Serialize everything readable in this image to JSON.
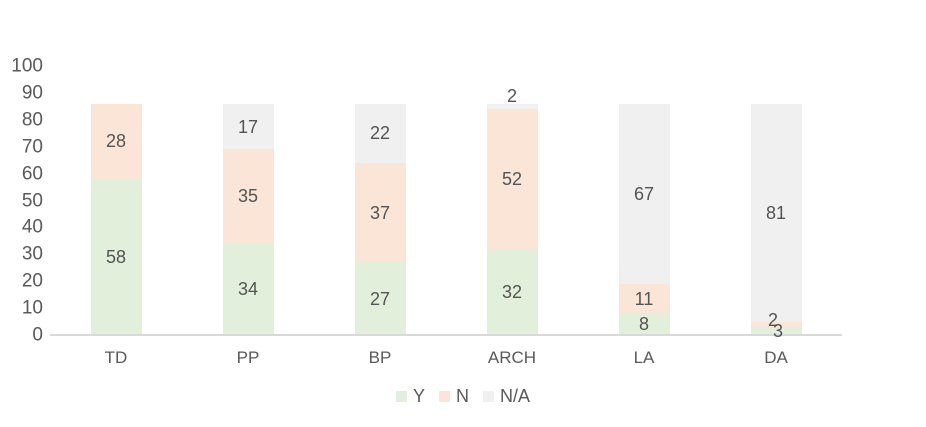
{
  "chart_data": {
    "type": "bar",
    "stacked": true,
    "title": "",
    "xlabel": "",
    "ylabel": "",
    "categories": [
      "TD",
      "PP",
      "BP",
      "ARCH",
      "LA",
      "DA"
    ],
    "series": [
      {
        "name": "Y",
        "color": "#e2efda",
        "values": [
          58,
          34,
          27,
          32,
          8,
          3
        ]
      },
      {
        "name": "N",
        "color": "#fbe5d6",
        "values": [
          28,
          35,
          37,
          52,
          11,
          2
        ]
      },
      {
        "name": "N/A",
        "color": "#f0f0f0",
        "values": [
          0,
          17,
          22,
          2,
          67,
          81
        ]
      }
    ],
    "ylim": [
      0,
      100
    ],
    "yticks": [
      0,
      10,
      20,
      30,
      40,
      50,
      60,
      70,
      80,
      90,
      100
    ],
    "gridlines": false,
    "data_labels": true,
    "legend_position": "bottom",
    "legend_entries": [
      "Y",
      "N",
      "N/A"
    ],
    "colors": {
      "axis_line": "#d9d9d9",
      "tick_text": "#595959",
      "data_label_text": "#545454"
    }
  }
}
